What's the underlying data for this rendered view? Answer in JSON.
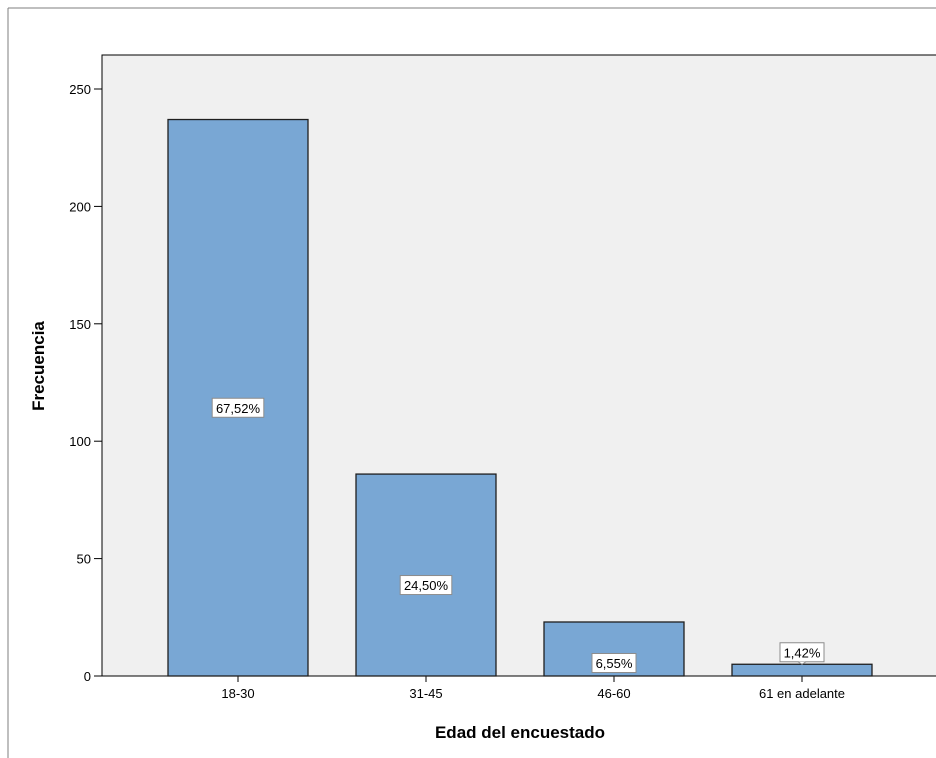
{
  "chart_data": {
    "type": "bar",
    "title": "",
    "xlabel": "Edad del encuestado",
    "ylabel": "Frecuencia",
    "categories": [
      "18-30",
      "31-45",
      "46-60",
      "61 en adelante"
    ],
    "values": [
      237,
      86,
      23,
      5
    ],
    "data_labels": [
      "67,52%",
      "24,50%",
      "6,55%",
      "1,42%"
    ],
    "ylim": [
      0,
      250
    ],
    "yticks": [
      0,
      50,
      100,
      150,
      200,
      250
    ],
    "grid": false,
    "legend": "none",
    "colors": {
      "bar_fill": "#79a7d4",
      "bar_stroke": "#1f1f1f",
      "plot_background": "#f0f0f0",
      "page_background": "#ffffff"
    }
  }
}
